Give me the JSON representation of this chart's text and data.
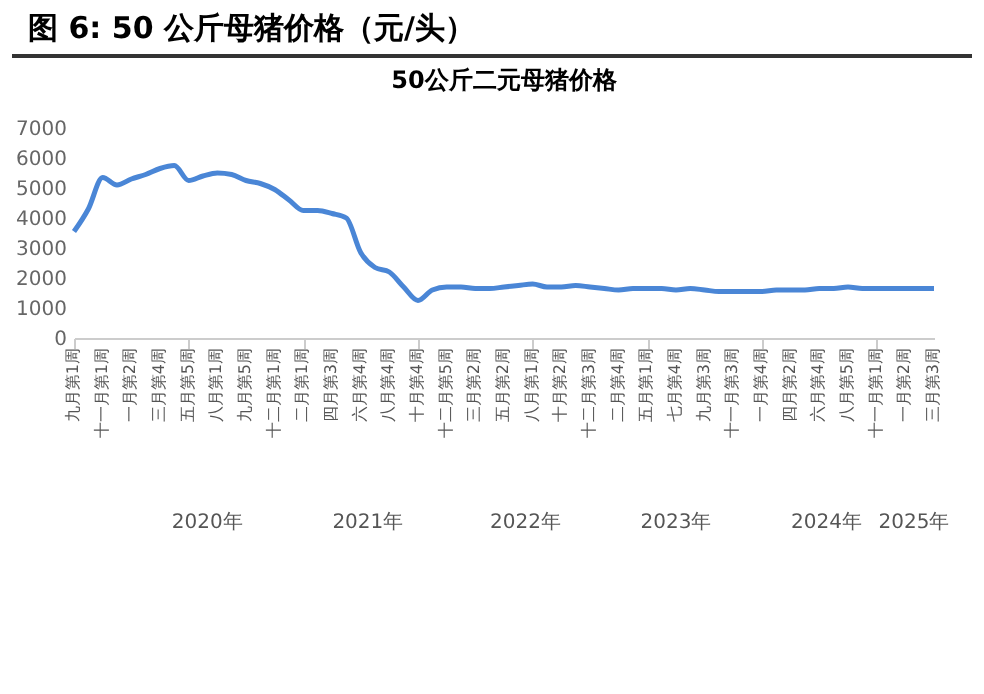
{
  "chart_data": {
    "type": "line",
    "title": "图 6:  50 公斤母猪价格（元/头）",
    "subtitle": "50公斤二元母猪价格",
    "categories": [
      "九月第1周",
      null,
      "十一月第1周",
      null,
      "一月第2周",
      null,
      "三月第4周",
      null,
      "五月第5周",
      null,
      "八月第1周",
      null,
      "九月第5周",
      null,
      "十二月第1周",
      null,
      "二月第1周",
      null,
      "四月第3周",
      null,
      "六月第4周",
      null,
      "八月第4周",
      null,
      "十月第4周",
      null,
      "十二月第5周",
      null,
      "三月第2周",
      null,
      "五月第2周",
      null,
      "八月第1周",
      null,
      "十月第2周",
      null,
      "十二月第3周",
      null,
      "二月第4周",
      null,
      "五月第1周",
      null,
      "七月第4周",
      null,
      "九月第3周",
      null,
      "十一月第3周",
      null,
      "一月第4周",
      null,
      "四月第2周",
      null,
      "六月第4周",
      null,
      "八月第5周",
      null,
      "十一月第1周",
      null,
      "一月第2周",
      null,
      "三月第3周"
    ],
    "series": [
      {
        "color": "#4a86d6",
        "values": [
          3550,
          4300,
          5350,
          5100,
          5300,
          5450,
          5650,
          5750,
          5250,
          5400,
          5500,
          5450,
          5250,
          5150,
          4950,
          4600,
          4250,
          4250,
          4150,
          4000,
          2850,
          2350,
          2200,
          1700,
          1250,
          1600,
          1700,
          1700,
          1650,
          1650,
          1700,
          1750,
          1800,
          1700,
          1700,
          1750,
          1700,
          1650,
          1600,
          1650,
          1650,
          1650,
          1600,
          1650,
          1600,
          1550,
          1550,
          1550,
          1550,
          1600,
          1600,
          1600,
          1650,
          1650,
          1700,
          1650,
          1650,
          1650,
          1650,
          1650,
          1650
        ]
      }
    ],
    "ylim": [
      0,
      7000
    ],
    "yticks": [
      0,
      1000,
      2000,
      3000,
      4000,
      5000,
      6000,
      7000
    ],
    "grid": false,
    "annotations": [
      "2020年",
      "2021年",
      "2022年",
      "2023年",
      "2024年",
      "2025年"
    ]
  }
}
